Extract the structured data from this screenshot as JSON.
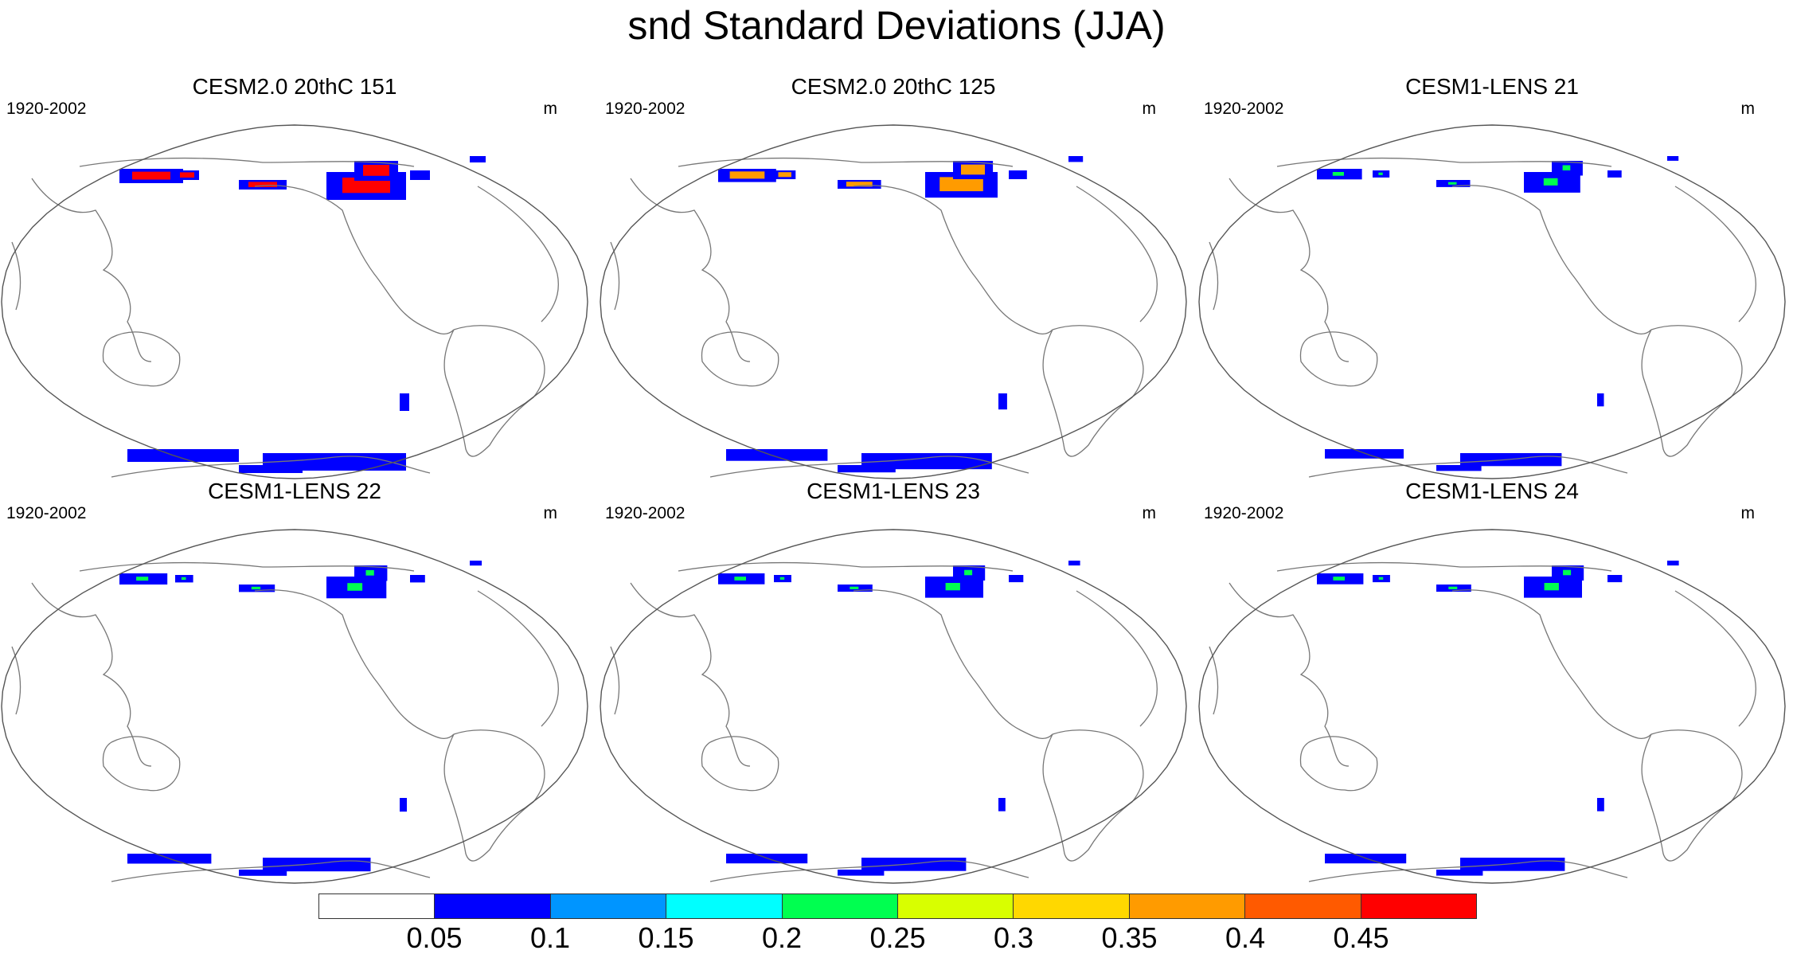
{
  "title": "snd Standard Deviations (JJA)",
  "panels": [
    {
      "title": "CESM2.0 20thC 151",
      "left_label": "1920-2002",
      "right_label": "m",
      "intensity": 1.0
    },
    {
      "title": "CESM2.0 20thC 125",
      "left_label": "1920-2002",
      "right_label": "m",
      "intensity": 0.8
    },
    {
      "title": "CESM1-LENS 21",
      "left_label": "1920-2002",
      "right_label": "m",
      "intensity": 0.35
    },
    {
      "title": "CESM1-LENS 22",
      "left_label": "1920-2002",
      "right_label": "m",
      "intensity": 0.45
    },
    {
      "title": "CESM1-LENS 23",
      "left_label": "1920-2002",
      "right_label": "m",
      "intensity": 0.4
    },
    {
      "title": "CESM1-LENS 24",
      "left_label": "1920-2002",
      "right_label": "m",
      "intensity": 0.4
    }
  ],
  "colorbar": {
    "colors": [
      "#ffffff",
      "#0000ff",
      "#0095ff",
      "#00ffff",
      "#00ff50",
      "#d8ff00",
      "#ffd800",
      "#ff9b00",
      "#ff5a00",
      "#ff0000"
    ],
    "labels": [
      "0.05",
      "0.1",
      "0.15",
      "0.2",
      "0.25",
      "0.3",
      "0.35",
      "0.4",
      "0.45"
    ]
  }
}
